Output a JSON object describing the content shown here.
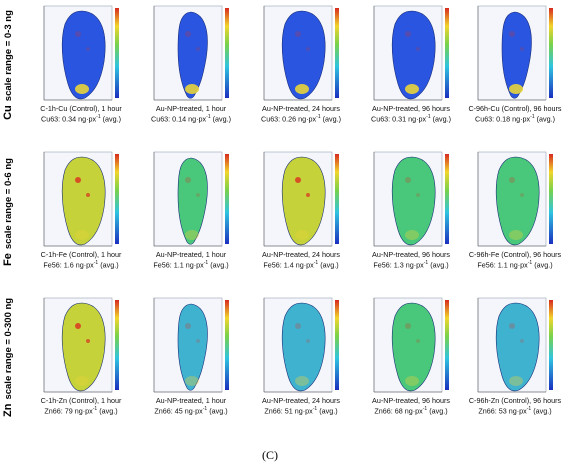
{
  "row_labels": [
    {
      "element": "Cu",
      "text": "scale range = 0-3 ng"
    },
    {
      "element": "Fe",
      "text": "scale range = 0-6 ng"
    },
    {
      "element": "Zn",
      "text": "scale range = 0-300 ng"
    }
  ],
  "panels": [
    {
      "title": "C-1h-Cu (Control), 1 hour",
      "value": "Cu63: 0.34 ng·px",
      "suffix": " (avg.)",
      "map": "blue",
      "leaf": "wide"
    },
    {
      "title": "Au-NP-treated, 1 hour",
      "value": "Cu63: 0.14 ng·px",
      "suffix": " (avg.)",
      "map": "blue",
      "leaf": "narrow"
    },
    {
      "title": "Au-NP-treated, 24 hours",
      "value": "Cu63: 0.26 ng·px",
      "suffix": " (avg.)",
      "map": "blue",
      "leaf": "wide"
    },
    {
      "title": "Au-NP-treated, 96 hours",
      "value": "Cu63: 0.31 ng·px",
      "suffix": " (avg.)",
      "map": "blue",
      "leaf": "wide"
    },
    {
      "title": "C-96h-Cu (Control), 96 hours",
      "value": "Cu63: 0.18 ng·px",
      "suffix": " (avg.)",
      "map": "blue",
      "leaf": "narrow"
    },
    {
      "title": "C-1h-Fe (Control), 1 hour",
      "value": "Fe56: 1.6 ng·px",
      "suffix": " (avg.)",
      "map": "yellow",
      "leaf": "wide"
    },
    {
      "title": "Au-NP-treated, 1 hour",
      "value": "Fe56: 1.1 ng·px",
      "suffix": " (avg.)",
      "map": "green",
      "leaf": "narrow"
    },
    {
      "title": "Au-NP-treated, 24 hours",
      "value": "Fe56: 1.4 ng·px",
      "suffix": " (avg.)",
      "map": "yellow",
      "leaf": "wide"
    },
    {
      "title": "Au-NP-treated, 96 hours",
      "value": "Fe56: 1.3 ng·px",
      "suffix": " (avg.)",
      "map": "green",
      "leaf": "wide"
    },
    {
      "title": "C-96h-Fe (Control), 96 hours",
      "value": "Fe56: 1.1 ng·px",
      "suffix": " (avg.)",
      "map": "green",
      "leaf": "wide"
    },
    {
      "title": "C-1h-Zn (Control), 1 hour",
      "value": "Zn66: 79 ng·px",
      "suffix": " (avg.)",
      "map": "yellow",
      "leaf": "wide"
    },
    {
      "title": "Au-NP-treated, 1 hour",
      "value": "Zn66: 45 ng·px",
      "suffix": " (avg.)",
      "map": "cyan",
      "leaf": "narrow"
    },
    {
      "title": "Au-NP-treated, 24 hours",
      "value": "Zn66: 51 ng·px",
      "suffix": " (avg.)",
      "map": "cyan",
      "leaf": "wide"
    },
    {
      "title": "Au-NP-treated, 96 hours",
      "value": "Zn66: 68 ng·px",
      "suffix": " (avg.)",
      "map": "green",
      "leaf": "wide"
    },
    {
      "title": "C-96h-Zn (Control), 96 hours",
      "value": "Zn66: 53 ng·px",
      "suffix": " (avg.)",
      "map": "cyan",
      "leaf": "wide"
    }
  ],
  "exponent": "-1",
  "figure_label": "(C)",
  "colors": {
    "blue": "#2a55e0",
    "green": "#49c77a",
    "yellow": "#c6d23a",
    "cyan": "#3fb2cf",
    "hot": "#d9301f"
  }
}
